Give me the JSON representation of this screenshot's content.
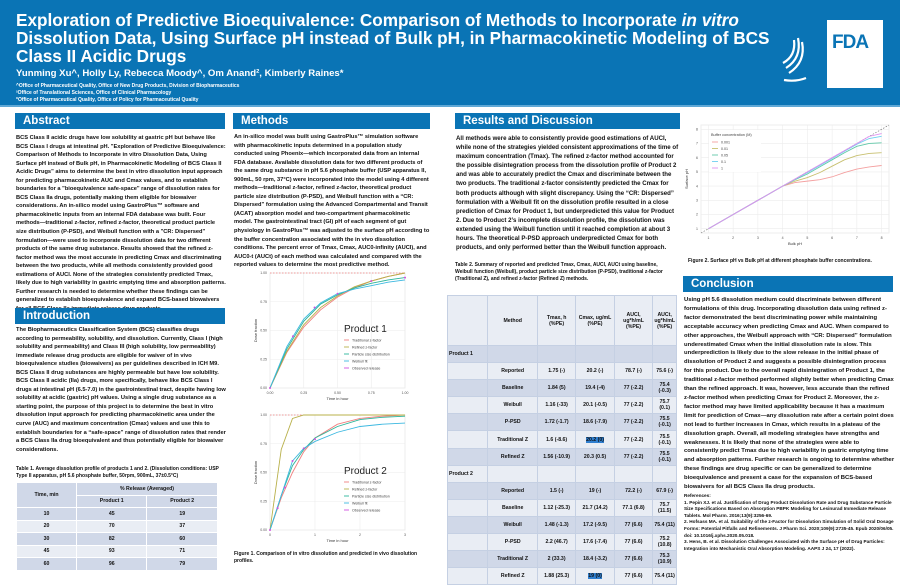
{
  "header": {
    "title_part1": "Exploration of Predictive Bioequivalence: Comparison of Methods to Incorporate ",
    "title_italic": "in vitro",
    "title_part2": " Dissolution Data, Using Surface pH instead of Bulk pH, in Pharmacokinetic Modeling of BCS Class II Acidic Drugs",
    "authors": "Yunming Xu^, Holly Ly, Rebecca Moody^, Om Anand², Kimberly Raines*",
    "affiliations": [
      "^Office of Pharmaceutical Quality, Office of New Drug Products, Division of Biopharmaceutics",
      "²Office of Translational Sciences, Office of Clinical Pharmacology",
      "*Office of Pharmaceutical Quality, Office of Policy for Pharmaceutical Quality"
    ],
    "logo_text": "FDA",
    "brand_color": "#0a74b5"
  },
  "abstract": {
    "heading": "Abstract",
    "text": "BCS Class II acidic drugs have low solubility at gastric pH but behave like BCS Class I drugs at intestinal pH. \"Exploration of Predictive Bioequivalence: Comparison of Methods to Incorporate in vitro Dissolution Data, Using Surface pH instead of Bulk pH, in Pharmacokinetic Modeling of BCS Class II Acidic Drugs\" aims to determine the best in vitro dissolution input approach for predicting pharmacokinetic AUC and Cmax values, and to establish boundaries for a \"bioequivalence safe-space\" range of dissolution rates for BCS Class IIa drugs, potentially making them eligible for biowaiver considerations. An in-silico model using GastroPlus™ software and pharmacokinetic inputs from an internal FDA database was built. Four methods—traditional z-factor, refined z-factor, theoretical product particle size distribution (P-PSD), and Weibull function with a \"CR: Dispersed\" formulation—were used to incorporate dissolution data for two different products of the same drug substance. Results showed that the refined z-factor method was the most accurate in predicting Cmax and discriminating between the two products, while all methods consistently provided good estimations of AUCI. None of the strategies consistently predicted Tmax, likely due to high variability in gastric emptying time and absorption patterns. Further research is needed to determine whether these findings can be generalized to establish bioequivalence and expand BCS-based biowaivers for all BCS Class IIa immediate release drug products."
  },
  "introduction": {
    "heading": "Introduction",
    "text": "The Biopharmaceutics Classification System (BCS) classifies drugs according to permeability, solubility, and dissolution. Currently, Class I (high solubility and permeability) and Class III (high solubility, low permeability) immediate release drug products are eligible for waiver of in vivo bioequivalence studies (biowaivers) as per guidelines described in ICH M9. BCS Class II drug substances are highly permeable but have low solubility. BCS Class II acidic (IIa) drugs, more specifically, behave like BCS Class I drugs at intestinal pH (6.5-7.0) in the gastrointestinal tract, despite having low solubility at acidic (gastric) pH values. Using a single drug substance as a starting point, the purpose of this project is to determine the best in vitro dissolution input approach for predicting pharmacokinetic area under the curve (AUC) and maximum concentration (Cmax) values and use this to establish boundaries for a “safe-space” range of dissolution rates that render a BCS Class IIa drug bioequivalent and thus potentially eligible for biowaiver considerations."
  },
  "table1": {
    "caption": "Table 1. Average dissolution profile of products 1 and 2. (Dissolution conditions: USP Type II apparatus, pH 5.6 phosphate buffer, 50rpm, 900mL, 37±0.5°C)",
    "col_time": "Time, min",
    "col_group": "% Release (Averaged)",
    "col_p1": "Product 1",
    "col_p2": "Product 2",
    "rows": [
      [
        "10",
        "45",
        "19"
      ],
      [
        "20",
        "70",
        "37"
      ],
      [
        "30",
        "82",
        "60"
      ],
      [
        "45",
        "93",
        "71"
      ],
      [
        "60",
        "96",
        "79"
      ]
    ]
  },
  "methods": {
    "heading": "Methods",
    "text": "An in-silico model was built using GastroPlus™ simulation software with pharmacokinetic inputs determined in a population study conducted using Phoenix—which incorporated data from an internal FDA database. Available dissolution data for two different products of the same drug substance in pH 5.6 phosphate buffer (USP apparatus II, 900mL, 50 rpm, 37°C) were incorporated into the model using 4 different methods—traditional z-factor, refined z-factor, theoretical product particle size distribution (P-PSD), and Weibull function with a “CR: Dispersed” formulation using the Advanced Compartmental and Transit (ACAT) absorption model and two-compartment pharmacokinetic model. The gastrointestinal tract (GI) pH of each segment of gut physiology in GastroPlus™ was adjusted to the surface pH according to the buffer concentration associated with the in vivo dissolution conditions. The percent error of Tmax, Cmax, AUC0-infinity (AUCI), and AUC0-t (AUCt) of each method was calculated and compared with the reported values to determine the most predictive method.",
    "figure_caption": "Figure 1. Comparison of in vitro dissolution and predicted in vivo dissolution profiles."
  },
  "results": {
    "heading": "Results and Discussion",
    "text": "All methods were able to consistently provide good estimations of AUCI, while none of the strategies yielded consistent approximations of the time of maximum concentration (Tmax). The refined z-factor method accounted for the possible disintegration process from the dissolution profile of Product 2 and was able to accurately predict the Cmax and discriminate between the two products. The traditional z-factor consistently predicted the Cmax for both products although with slight discrepancy. Using the “CR: Dispersed” formulation with a Weibull fit on the dissolution profile resulted in a close prediction of Cmax for Product 1, but underpredicted this value for Product 2. Due to Product 2’s incomplete dissolution profile, the dissolution was extended using the Weibull function until it reached completion at about 3 hours. The theoretical P-PSD approach underpredicted Cmax for both products, and only performed better than the Weibull function approach.",
    "figure2_caption": "Figure 2. Surface pH vs Bulk pH at different phosphate buffer concentrations."
  },
  "table2": {
    "caption": "Table 2. Summary of reported and predicted Tmax, Cmax, AUCI, AUCt using baseline, Weibull function (Weibull), product particle size distribution (P-PSD), traditional z-factor (Traditional Z), and refined z-factor (Refined Z) methods.",
    "headers": [
      "",
      "Method",
      "Tmax, h (%PE)",
      "Cmax, ug/mL (%PE)",
      "AUCI, ug*h/mL (%PE)",
      "AUCt, ug*h/mL (%PE)"
    ],
    "groups": [
      {
        "name": "Product 1",
        "rows": [
          [
            "Reported",
            "1.75 (-)",
            "20.2 (-)",
            "78.7 (-)",
            "75.6 (-)"
          ],
          [
            "Baseline",
            "1.84 (5)",
            "19.4 (-4)",
            "77 (-2.2)",
            "75.4 (-0.3)"
          ],
          [
            "Weibull",
            "1.16 (-33)",
            "20.1 (-0.5)",
            "77 (-2.2)",
            "75.7 (0.1)"
          ],
          [
            "P-PSD",
            "1.72 (-1.7)",
            "18.6 (-7.9)",
            "77 (-2.2)",
            "75.5 (-0.1)"
          ],
          [
            "Traditional Z",
            "1.6 (-8.6)",
            "20.2 (0)",
            "77 (-2.2)",
            "75.5 (-0.1)"
          ],
          [
            "Refined Z",
            "1.56 (-10.9)",
            "20.3 (0.5)",
            "77 (-2.2)",
            "75.5 (-0.1)"
          ]
        ]
      },
      {
        "name": "Product 2",
        "rows": [
          [
            "Reported",
            "1.5 (-)",
            "19 (-)",
            "72.2 (-)",
            "67.9 (-)"
          ],
          [
            "Baseline",
            "1.12 (-25.3)",
            "21.7 (14.2)",
            "77.1 (6.8)",
            "75.7 (11.5)"
          ],
          [
            "Weibull",
            "1.48 (-1.3)",
            "17.2 (-9.5)",
            "77 (6.6)",
            "75.4 (11)"
          ],
          [
            "P-PSD",
            "2.2 (46.7)",
            "17.6 (-7.4)",
            "77 (6.6)",
            "75.2 (10.8)"
          ],
          [
            "Traditional Z",
            "2 (33.3)",
            "18.4 (-3.2)",
            "77 (6.6)",
            "75.3 (10.9)"
          ],
          [
            "Refined Z",
            "1.88 (25.3)",
            "19 (0)",
            "77 (6.6)",
            "75.4 (11)"
          ]
        ]
      }
    ]
  },
  "conclusion": {
    "heading": "Conclusion",
    "text": "Using pH 5.6 dissolution medium could discriminate between different formulations of this drug. Incorporating dissolution data using refined z-factor demonstrated the best discriminating power while maintaining acceptable accuracy when predicting Cmax and AUC. When compared to other approaches, the Weibull approach with “CR: Dispersed” formulation underestimated Cmax when the initial dissolution rate is slow. This underprediction is likely due to the slow release in the initial phase of dissolution of Product 2 and suggests a possible disintegration process for this product. Due to the overall rapid disintegration of Product 1, the traditional z-factor method performed slightly better when predicting Cmax than the refined approach. It was, however, less accurate than the refined z-factor method when predicting Cmax for Product 2. Moreover, the z-factor method may have limited applicability because it has a maximum limit for prediction of Cmax—any dissolution rate after a certain point does not lead to further increases in Cmax, which results in a plateau of the dissolution graph. Overall, all modeling strategies have strengths and weaknesses. It is likely that none of the strategies were able to consistently predict Tmax due to high variability in gastric emptying time and absorption patterns. Further research is ongoing to determine whether these findings are drug specific or can be generalized to determine bioequivalence and present a case for the expansion of BCS-based biowaivers for all BCS Class IIa drug products.",
    "references_heading": "References:",
    "references": [
      "1. Pepin XJ. et al. Justification of Drug Product Dissolution Rate and Drug Substance Particle Size Specifications Based on Absorption PBPK Modeling for Lesinurad Immediate Release Tablets. Mol Pharm. 2016;13(9):3256-69.",
      "2. Hofsass MA. et al. Suitability of the z-Factor for Dissolution Simulation of Solid Oral Dosage Forms: Potential Pitfalls and Refinements. J Pharm Sci. 2020;109(9):2735-45. Epub 2020/06/05. doi: 10.1016/j.xphs.2020.05.018.",
      "3. Hens, B. et al. Dissolution Challenges Associated with the Surface pH of Drug Particles: Integration into Mechanistic Oral Absorption Modeling. AAPS J 24, 17 (2022)."
    ]
  },
  "chart_data": [
    {
      "type": "line",
      "title": "Product 1",
      "xlabel": "Time in hour",
      "ylabel": "Dose fraction",
      "xlim": [
        0,
        1
      ],
      "ylim": [
        0,
        1
      ],
      "xticks": [
        "0.00",
        "0.25",
        "0.50",
        "0.75",
        "1.00"
      ],
      "yticks": [
        "0.00",
        "0.25",
        "0.50",
        "0.75",
        "1.00"
      ],
      "grid": true,
      "legend": "right",
      "x": [
        0,
        0.125,
        0.25,
        0.375,
        0.5,
        0.625,
        0.75,
        0.875,
        1
      ],
      "series": [
        {
          "name": "Traditional z-factor",
          "color": "#f08080",
          "values": [
            0,
            0.31,
            0.53,
            0.68,
            0.79,
            0.87,
            0.93,
            0.97,
            1.0
          ]
        },
        {
          "name": "Refined z-factor",
          "color": "#b8b04a",
          "values": [
            0,
            0.32,
            0.55,
            0.7,
            0.8,
            0.88,
            0.93,
            0.97,
            1.0
          ]
        },
        {
          "name": "Particle size distribution",
          "color": "#2cb59a",
          "values": [
            0,
            0.34,
            0.58,
            0.73,
            0.81,
            0.87,
            0.91,
            0.94,
            0.96
          ]
        },
        {
          "name": "Weibull fit",
          "color": "#3cb8e0",
          "values": [
            0,
            0.36,
            0.6,
            0.74,
            0.82,
            0.86,
            0.89,
            0.92,
            0.94
          ]
        }
      ],
      "observed": {
        "name": "Observed release",
        "color": "#d050e0",
        "x": [
          0,
          0.17,
          0.33,
          0.5,
          0.75,
          1
        ],
        "values": [
          0,
          0.45,
          0.7,
          0.82,
          0.93,
          0.96
        ]
      },
      "reference_line": 1.0
    },
    {
      "type": "line",
      "title": "Product 2",
      "xlabel": "Time in hour",
      "ylabel": "Dose fraction",
      "xlim": [
        0,
        3
      ],
      "ylim": [
        0,
        1
      ],
      "xticks": [
        "0",
        "1",
        "2",
        "3"
      ],
      "yticks": [
        "0.00",
        "0.25",
        "0.50",
        "0.75",
        "1.00"
      ],
      "grid": true,
      "legend": "right",
      "x": [
        0,
        0.25,
        0.5,
        0.75,
        1,
        1.5,
        2,
        2.5,
        3
      ],
      "series": [
        {
          "name": "Traditional z-factor",
          "color": "#f08080",
          "values": [
            0,
            0.28,
            0.5,
            0.68,
            0.8,
            0.92,
            0.97,
            0.99,
            1.0
          ]
        },
        {
          "name": "Refined z-factor",
          "color": "#b8b04a",
          "values": [
            0,
            0.7,
            0.97,
            1.0,
            1.0,
            1.0,
            1.0,
            1.0,
            1.0
          ]
        },
        {
          "name": "Particle size distribution",
          "color": "#2cb59a",
          "values": [
            0,
            0.3,
            0.56,
            0.7,
            0.8,
            0.9,
            0.96,
            0.98,
            0.99
          ]
        },
        {
          "name": "Weibull fit",
          "color": "#3cb8e0",
          "values": [
            0,
            0.3,
            0.6,
            0.71,
            0.77,
            0.85,
            0.9,
            0.92,
            0.93
          ]
        }
      ],
      "observed": {
        "name": "Observed release",
        "color": "#d050e0",
        "x": [
          0,
          0.17,
          0.33,
          0.5,
          0.75,
          1
        ],
        "values": [
          0,
          0.19,
          0.37,
          0.6,
          0.71,
          0.79
        ]
      },
      "reference_line": 1.0
    },
    {
      "type": "line",
      "title": "",
      "xlabel": "Bulk pH",
      "ylabel": "Surface pH",
      "legend_title": "Buffer concentration (M)",
      "xlim": [
        0.7,
        8.3
      ],
      "ylim": [
        0.7,
        8.3
      ],
      "xticks": [
        "1",
        "2",
        "3",
        "4",
        "5",
        "6",
        "7",
        "8"
      ],
      "yticks": [
        "1",
        "2",
        "3",
        "4",
        "5",
        "6",
        "7",
        "8"
      ],
      "grid": true,
      "legend": "top-left",
      "x": [
        1,
        2,
        3,
        4,
        4.5,
        5,
        5.5,
        6,
        6.5,
        7,
        7.5,
        8
      ],
      "series": [
        {
          "name": "0.001",
          "color": "#f4a0a0",
          "values": [
            1,
            2,
            3,
            4,
            4.25,
            4.35,
            4.45,
            4.65,
            4.95,
            5.2,
            5.35,
            5.45
          ]
        },
        {
          "name": "0.01",
          "color": "#c8c070",
          "values": [
            1,
            2,
            3,
            4,
            4.35,
            4.6,
            4.95,
            5.4,
            5.85,
            6.15,
            6.3,
            6.35
          ]
        },
        {
          "name": "0.05",
          "color": "#60c8a8",
          "values": [
            1,
            2,
            3,
            4,
            4.45,
            4.85,
            5.35,
            5.85,
            6.35,
            6.8,
            7.0,
            7.05
          ]
        },
        {
          "name": "0.1",
          "color": "#70d0f0",
          "values": [
            1,
            2,
            3,
            4,
            4.48,
            4.95,
            5.45,
            5.95,
            6.45,
            6.95,
            7.35,
            7.5
          ]
        },
        {
          "name": "1",
          "color": "#e090f0",
          "values": [
            1,
            2,
            3,
            4,
            4.5,
            5,
            5.5,
            6,
            6.5,
            7,
            7.5,
            7.7
          ]
        }
      ],
      "reference_line": "y=x"
    }
  ]
}
